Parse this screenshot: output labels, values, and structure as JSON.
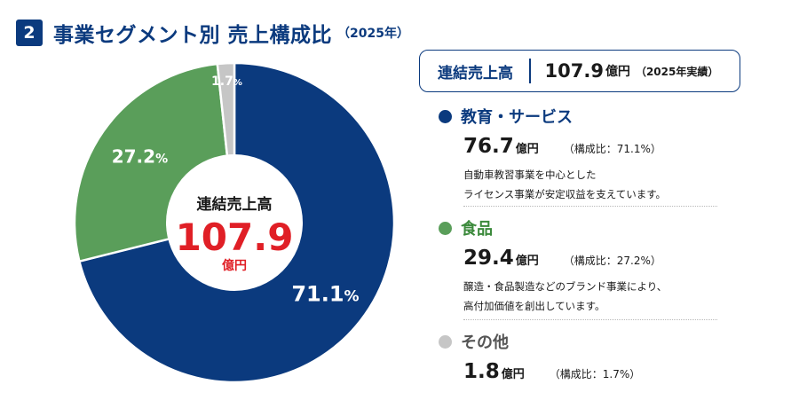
{
  "header": {
    "number": "2",
    "title": "事業セグメント別 売上構成比",
    "year": "（2025年）"
  },
  "chart_data": {
    "type": "pie",
    "donut": true,
    "categories": [
      "教育・サービス",
      "食品",
      "その他"
    ],
    "values": [
      71.1,
      27.2,
      1.7
    ],
    "value_labels": [
      "71.1",
      "27.2",
      "1.7"
    ],
    "value_suffix": "%",
    "colors": [
      "#0b3a7e",
      "#5a9e5a",
      "#c6c6c6"
    ],
    "center": {
      "label": "連結売上高",
      "value": "107.9",
      "unit": "億円"
    }
  },
  "total": {
    "label": "連結売上高",
    "value": "107.9",
    "unit": "億円",
    "note": "（2025年実績）"
  },
  "segments": [
    {
      "name": "教育・サービス",
      "color": "#0b3a7e",
      "amount": "76.7",
      "unit": "億円",
      "ratio": "（構成比：71.1%）",
      "desc1": "自動車教習事業を中心とした",
      "desc2": "ライセンス事業が安定収益を支えています。"
    },
    {
      "name": "食品",
      "color": "#5a9e5a",
      "amount": "29.4",
      "unit": "億円",
      "ratio": "（構成比：27.2%）",
      "desc1": "醸造・食品製造などのブランド事業により、",
      "desc2": "高付加価値を創出しています。"
    },
    {
      "name": "その他",
      "color": "#c6c6c6",
      "amount": "1.8",
      "unit": "億円",
      "ratio": "（構成比：1.7%）"
    }
  ]
}
